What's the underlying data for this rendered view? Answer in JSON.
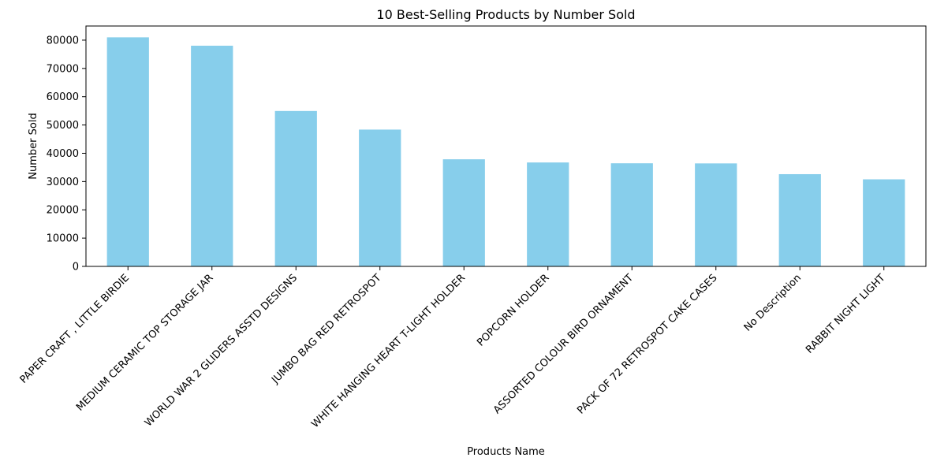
{
  "chart_data": {
    "type": "bar",
    "title": "10 Best-Selling Products by Number Sold",
    "xlabel": "Products Name",
    "ylabel": "Number Sold",
    "categories": [
      "PAPER CRAFT , LITTLE BIRDIE",
      "MEDIUM CERAMIC TOP STORAGE JAR",
      "WORLD WAR 2 GLIDERS ASSTD DESIGNS",
      "JUMBO BAG RED RETROSPOT",
      "WHITE HANGING HEART T-LIGHT HOLDER",
      "POPCORN HOLDER",
      "ASSORTED COLOUR BIRD ORNAMENT",
      "PACK OF 72 RETROSPOT CAKE CASES",
      "No Description",
      "RABBIT NIGHT LIGHT"
    ],
    "values": [
      80995,
      78033,
      54951,
      48371,
      37872,
      36749,
      36461,
      36419,
      32609,
      30788
    ],
    "ylim": [
      0,
      85000
    ],
    "yticks": [
      0,
      10000,
      20000,
      30000,
      40000,
      50000,
      60000,
      70000,
      80000
    ],
    "bar_color": "#87ceeb",
    "grid": false,
    "legend": "none"
  }
}
